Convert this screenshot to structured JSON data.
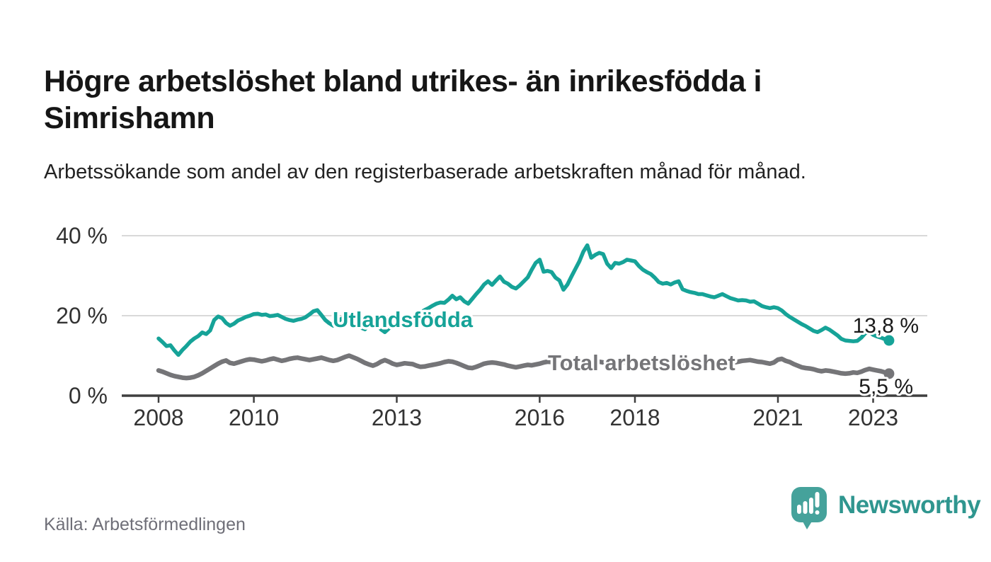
{
  "header": {
    "title": "Högre arbetslöshet bland utrikes- än inrikesfödda i Simrishamn",
    "subtitle": "Arbetssökande som andel av den registerbaserade arbetskraften månad för månad."
  },
  "footer": {
    "source": "Källa: Arbetsförmedlingen",
    "logo_text": "Newsworthy"
  },
  "colors": {
    "series_utlandsfodda": "#16a398",
    "series_total": "#757578",
    "axis_text": "#333333",
    "axis_line": "#3f3f3f",
    "gridline": "#d9d9d9",
    "title_text": "#161616",
    "source_text": "#6f6f78",
    "logo_teal": "#45a29b",
    "logo_wordmark": "#2f968f"
  },
  "chart_data": {
    "type": "line",
    "title": "Högre arbetslöshet bland utrikes- än inrikesfödda i Simrishamn",
    "subtitle": "Arbetssökande som andel av den registerbaserade arbetskraften månad för månad.",
    "unit": "%",
    "frequency": "monthly",
    "start": "2008-01",
    "end": "2023-05",
    "grid": "horizontal-only",
    "legend_position": "inline-labels",
    "ylim": [
      0,
      44
    ],
    "y_ticks": [
      "40 %",
      "20 %",
      "0 %"
    ],
    "x_tick_years": [
      "2008",
      "2010",
      "2013",
      "2016",
      "2018",
      "2021",
      "2023"
    ],
    "series": [
      {
        "name": "Utlandsfödda",
        "color": "#16a398",
        "end_label": "13,8 %",
        "end_value": 13.8,
        "values": [
          14.3,
          13.4,
          12.4,
          12.6,
          11.3,
          10.2,
          11.4,
          12.4,
          13.5,
          14.3,
          14.9,
          15.8,
          15.4,
          16.3,
          18.9,
          19.8,
          19.4,
          18.2,
          17.5,
          18.0,
          18.8,
          19.2,
          19.7,
          20.0,
          20.4,
          20.5,
          20.2,
          20.3,
          19.9,
          20.0,
          20.2,
          19.7,
          19.2,
          18.9,
          18.7,
          19.0,
          19.2,
          19.6,
          20.3,
          21.1,
          21.4,
          20.2,
          18.9,
          18.1,
          17.5,
          18.3,
          19.2,
          19.6,
          19.9,
          19.3,
          18.2,
          17.0,
          16.6,
          17.8,
          18.8,
          17.9,
          16.6,
          15.9,
          16.8,
          17.8,
          18.5,
          19.0,
          19.4,
          19.0,
          19.6,
          20.2,
          20.8,
          21.4,
          21.9,
          22.5,
          23.0,
          23.3,
          23.2,
          24.0,
          25.0,
          24.1,
          24.6,
          23.6,
          23.0,
          24.2,
          25.4,
          26.5,
          27.8,
          28.6,
          27.7,
          28.8,
          29.8,
          28.5,
          28.0,
          27.2,
          26.8,
          27.6,
          28.6,
          29.6,
          31.5,
          33.2,
          34.0,
          31.0,
          31.2,
          30.9,
          29.5,
          28.8,
          26.5,
          27.8,
          29.8,
          31.7,
          33.6,
          36.0,
          37.6,
          34.5,
          35.2,
          35.7,
          35.4,
          33.0,
          31.9,
          33.2,
          33.0,
          33.4,
          34.0,
          33.8,
          33.6,
          32.4,
          31.5,
          30.9,
          30.4,
          29.5,
          28.4,
          28.0,
          28.2,
          27.8,
          28.3,
          28.6,
          26.6,
          26.2,
          25.9,
          25.7,
          25.4,
          25.4,
          25.1,
          24.8,
          24.6,
          25.0,
          25.4,
          24.9,
          24.4,
          24.1,
          23.8,
          23.9,
          23.8,
          23.5,
          23.6,
          23.0,
          22.4,
          22.1,
          21.9,
          22.1,
          21.9,
          21.3,
          20.4,
          19.7,
          19.1,
          18.5,
          17.9,
          17.4,
          16.8,
          16.2,
          15.9,
          16.4,
          17.0,
          16.5,
          15.8,
          15.1,
          14.2,
          13.8,
          13.7,
          13.6,
          13.7,
          14.5,
          15.6,
          16.0,
          15.2,
          14.8,
          14.5,
          14.1,
          13.8
        ]
      },
      {
        "name": "Total arbetslöshet",
        "color": "#757578",
        "end_label": "5,5 %",
        "end_value": 5.5,
        "values": [
          6.3,
          6.0,
          5.6,
          5.2,
          4.9,
          4.7,
          4.5,
          4.4,
          4.5,
          4.7,
          5.1,
          5.6,
          6.2,
          6.8,
          7.4,
          8.0,
          8.5,
          8.8,
          8.2,
          8.0,
          8.3,
          8.6,
          8.9,
          9.1,
          9.0,
          8.8,
          8.6,
          8.8,
          9.1,
          9.3,
          9.0,
          8.7,
          8.9,
          9.2,
          9.4,
          9.5,
          9.3,
          9.1,
          8.9,
          9.1,
          9.3,
          9.5,
          9.2,
          8.9,
          8.7,
          8.9,
          9.3,
          9.7,
          10.0,
          9.6,
          9.2,
          8.7,
          8.2,
          7.8,
          7.5,
          7.9,
          8.5,
          8.9,
          8.5,
          8.0,
          7.7,
          7.9,
          8.1,
          8.0,
          7.9,
          7.5,
          7.2,
          7.3,
          7.5,
          7.7,
          7.9,
          8.1,
          8.4,
          8.6,
          8.5,
          8.2,
          7.8,
          7.4,
          7.0,
          6.9,
          7.2,
          7.6,
          8.0,
          8.2,
          8.3,
          8.2,
          8.0,
          7.8,
          7.5,
          7.3,
          7.1,
          7.3,
          7.5,
          7.7,
          7.6,
          7.8,
          8.0,
          8.3,
          8.5,
          8.4,
          8.2,
          7.9,
          7.7,
          7.9,
          8.2,
          8.4,
          8.5,
          8.6,
          8.7,
          8.8,
          8.7,
          8.5,
          8.3,
          8.1,
          7.9,
          8.0,
          8.2,
          8.4,
          8.5,
          8.6,
          8.5,
          8.4,
          8.2,
          8.0,
          7.8,
          7.6,
          7.4,
          7.5,
          7.7,
          7.8,
          7.9,
          7.8,
          7.7,
          7.6,
          7.5,
          7.4,
          7.5,
          7.6,
          7.7,
          7.6,
          7.5,
          7.6,
          7.8,
          8.0,
          8.2,
          8.3,
          8.5,
          8.7,
          8.8,
          8.9,
          8.7,
          8.5,
          8.4,
          8.2,
          8.0,
          8.3,
          9.0,
          9.2,
          8.7,
          8.4,
          7.9,
          7.5,
          7.1,
          6.9,
          6.8,
          6.6,
          6.3,
          6.1,
          6.3,
          6.2,
          6.0,
          5.8,
          5.6,
          5.5,
          5.6,
          5.8,
          5.7,
          6.0,
          6.4,
          6.7,
          6.5,
          6.3,
          6.1,
          5.8,
          5.5
        ]
      }
    ]
  }
}
